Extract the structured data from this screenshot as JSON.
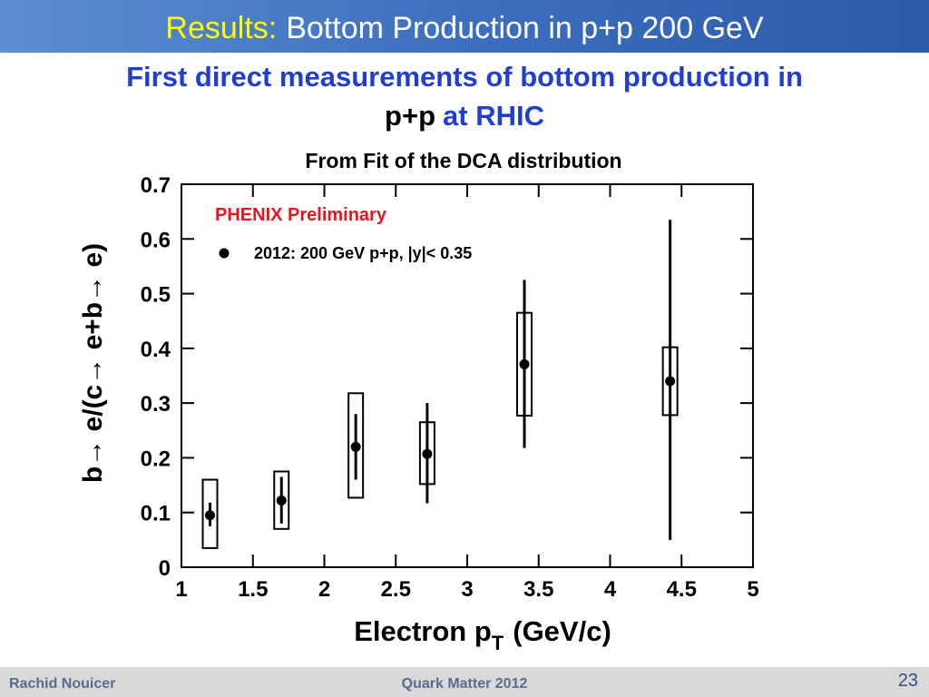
{
  "header": {
    "title_prefix": "Results:",
    "title": "Bottom Production in p+p 200 GeV"
  },
  "subtitle": {
    "line1": "First direct measurements of bottom production in",
    "line2_black": "p+p",
    "line2_blue": "at RHIC"
  },
  "chart_data": {
    "type": "scatter",
    "title": "From Fit of the DCA distribution",
    "annotation": "PHENIX Preliminary",
    "y_label": "b→ e/(c→ e+b→ e)",
    "x_label": {
      "main": "Electron p",
      "subscript": "T",
      "unit": "(GeV/c)"
    },
    "series": [
      {
        "name": "2012: 200 GeV p+p, |y|< 0.35",
        "color": "#000000",
        "x": [
          1.2,
          1.7,
          2.22,
          2.72,
          3.4,
          4.42
        ],
        "values": [
          0.095,
          0.122,
          0.22,
          0.207,
          0.371,
          0.34
        ],
        "stat_low": [
          0.075,
          0.08,
          0.16,
          0.117,
          0.218,
          0.05
        ],
        "stat_high": [
          0.118,
          0.165,
          0.28,
          0.3,
          0.525,
          0.635
        ],
        "sys_low": [
          0.035,
          0.07,
          0.127,
          0.152,
          0.277,
          0.278
        ],
        "sys_high": [
          0.16,
          0.175,
          0.318,
          0.265,
          0.465,
          0.402
        ]
      }
    ],
    "xlim": [
      1,
      5
    ],
    "xticks": [
      1,
      1.5,
      2,
      2.5,
      3,
      3.5,
      4,
      4.5,
      5
    ],
    "ylim": [
      0,
      0.7
    ],
    "yticks": [
      0,
      0.1,
      0.2,
      0.3,
      0.4,
      0.5,
      0.6,
      0.7
    ]
  },
  "footer": {
    "author": "Rachid Nouicer",
    "event": "Quark Matter 2012",
    "page": "23"
  }
}
